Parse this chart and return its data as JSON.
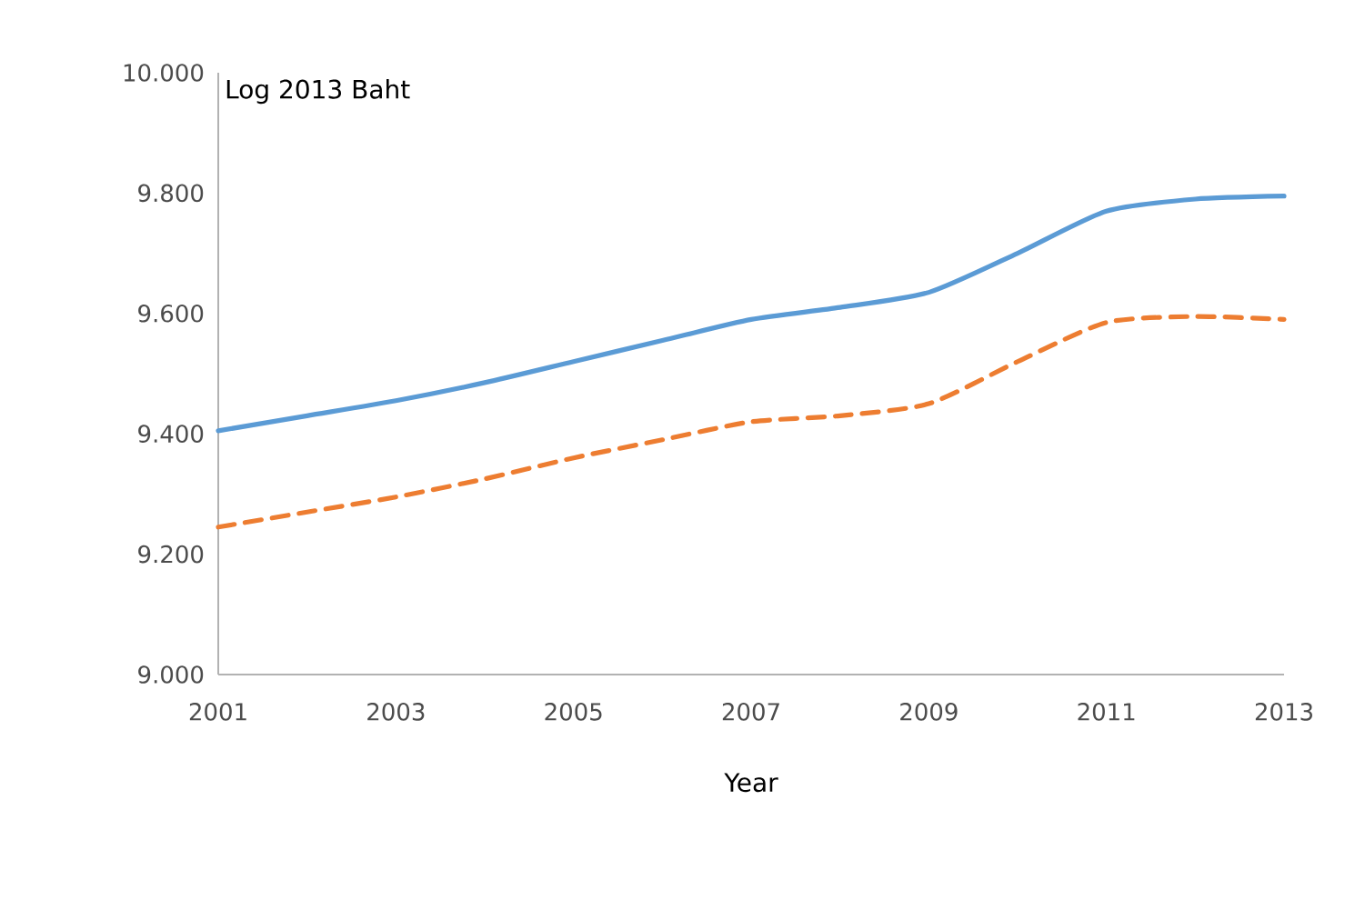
{
  "chart_data": {
    "type": "line",
    "xlabel": "Year",
    "ylabel": "Log 2013 Baht",
    "x": [
      2001,
      2002,
      2003,
      2004,
      2005,
      2006,
      2007,
      2008,
      2009,
      2010,
      2011,
      2012,
      2013
    ],
    "series": [
      {
        "color": "#5b9bd5",
        "line_style": "solid",
        "values": [
          9.405,
          9.43,
          9.455,
          9.485,
          9.52,
          9.555,
          9.59,
          9.61,
          9.635,
          9.7,
          9.77,
          9.79,
          9.795
        ]
      },
      {
        "color": "#ed7d31",
        "line_style": "dashed",
        "values": [
          9.245,
          9.27,
          9.295,
          9.325,
          9.36,
          9.39,
          9.42,
          9.43,
          9.45,
          9.52,
          9.585,
          9.595,
          9.59
        ]
      }
    ],
    "xlim": [
      2001,
      2013
    ],
    "xticks": [
      2001,
      2003,
      2005,
      2007,
      2009,
      2011,
      2013
    ],
    "ylim": [
      9.0,
      10.0
    ],
    "yticks": [
      {
        "value": 9.0,
        "label": "9.000"
      },
      {
        "value": 9.2,
        "label": "9.200"
      },
      {
        "value": 9.4,
        "label": "9.400"
      },
      {
        "value": 9.6,
        "label": "9.600"
      },
      {
        "value": 9.8,
        "label": "9.800"
      },
      {
        "value": 10.0,
        "label": "10.000"
      }
    ],
    "grid": false,
    "marker": "none"
  }
}
